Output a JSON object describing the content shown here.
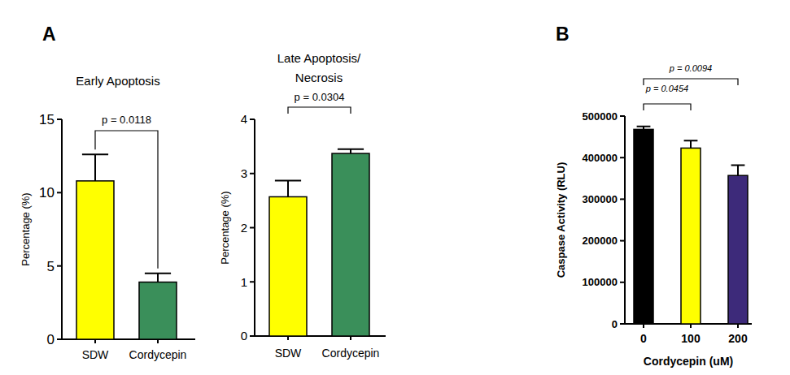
{
  "chart_data": [
    {
      "type": "bar",
      "panel": "A",
      "title": "Early Apoptosis",
      "y_label": "Percentage (%)",
      "categories": [
        "SDW",
        "Cordycepin"
      ],
      "values": [
        10.8,
        3.9
      ],
      "errors": [
        1.8,
        0.6
      ],
      "colors": [
        "#ffff00",
        "#3a8f5a"
      ],
      "ylim": [
        0,
        15
      ],
      "yticks": [
        0,
        5,
        10,
        15
      ],
      "comparisons": [
        {
          "between": [
            "SDW",
            "Cordycepin"
          ],
          "label": "p = 0.0118"
        }
      ]
    },
    {
      "type": "bar",
      "title": "Late Apoptosis/\nNecrosis",
      "y_label": "Percentage (%)",
      "categories": [
        "SDW",
        "Cordycepin"
      ],
      "values": [
        2.57,
        3.37
      ],
      "errors": [
        0.3,
        0.08
      ],
      "colors": [
        "#ffff00",
        "#3a8f5a"
      ],
      "ylim": [
        0,
        4
      ],
      "yticks": [
        0,
        1,
        2,
        3,
        4
      ],
      "comparisons": [
        {
          "between": [
            "SDW",
            "Cordycepin"
          ],
          "label": "p = 0.0304"
        }
      ]
    },
    {
      "type": "bar",
      "panel": "B",
      "x_label": "Cordycepin (uM)",
      "y_label": "Caspase Activity (RLU)",
      "categories": [
        "0",
        "100",
        "200"
      ],
      "values": [
        468000,
        423000,
        357000
      ],
      "errors": [
        7000,
        18000,
        25000
      ],
      "colors": [
        "#000000",
        "#ffff00",
        "#3d2a7a"
      ],
      "ylim": [
        0,
        500000
      ],
      "yticks": [
        0,
        100000,
        200000,
        300000,
        400000,
        500000
      ],
      "comparisons": [
        {
          "between": [
            "0",
            "100"
          ],
          "label": "p = 0.0454"
        },
        {
          "between": [
            "0",
            "200"
          ],
          "label": "p = 0.0094"
        }
      ]
    }
  ]
}
